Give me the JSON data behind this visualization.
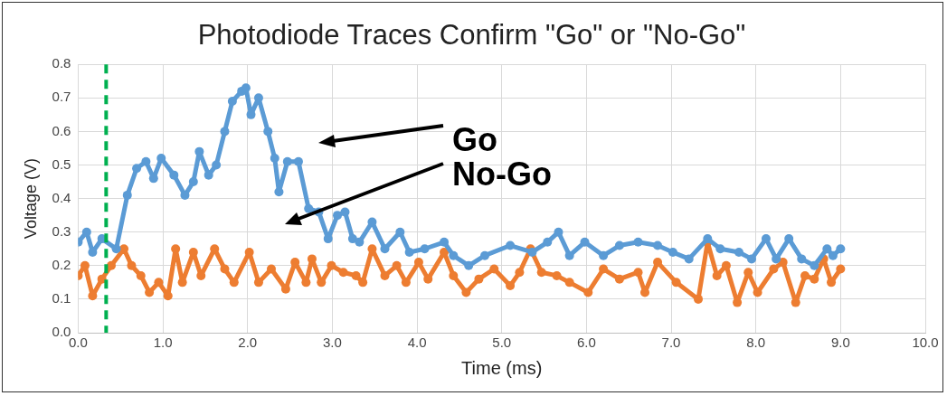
{
  "chart_data": {
    "type": "line",
    "title": "Photodiode Traces Confirm \"Go\" or \"No-Go\"",
    "xlabel": "Time (ms)",
    "ylabel": "Voltage (V)",
    "xlim": [
      0,
      10
    ],
    "ylim": [
      0,
      0.8
    ],
    "xticks": [
      {
        "value": 0,
        "label": "0.0"
      },
      {
        "value": 1,
        "label": "1.0"
      },
      {
        "value": 2,
        "label": "2.0"
      },
      {
        "value": 3,
        "label": "3.0"
      },
      {
        "value": 4,
        "label": "4.0"
      },
      {
        "value": 5,
        "label": "5.0"
      },
      {
        "value": 6,
        "label": "6.0"
      },
      {
        "value": 7,
        "label": "7.0"
      },
      {
        "value": 8,
        "label": "8.0"
      },
      {
        "value": 9,
        "label": "9.0"
      },
      {
        "value": 10,
        "label": "10.0"
      }
    ],
    "yticks": [
      {
        "value": 0,
        "label": "0.0"
      },
      {
        "value": 0.1,
        "label": "0.1"
      },
      {
        "value": 0.2,
        "label": "0.2"
      },
      {
        "value": 0.3,
        "label": "0.3"
      },
      {
        "value": 0.4,
        "label": "0.4"
      },
      {
        "value": 0.5,
        "label": "0.5"
      },
      {
        "value": 0.6,
        "label": "0.6"
      },
      {
        "value": 0.7,
        "label": "0.7"
      },
      {
        "value": 0.8,
        "label": "0.8"
      }
    ],
    "grid": true,
    "marker": "circle",
    "series": [
      {
        "color": "#5b9bd5",
        "x": [
          0.0,
          0.1,
          0.17,
          0.28,
          0.45,
          0.58,
          0.69,
          0.8,
          0.89,
          0.98,
          1.13,
          1.26,
          1.36,
          1.43,
          1.54,
          1.63,
          1.73,
          1.82,
          1.93,
          1.98,
          2.04,
          2.13,
          2.24,
          2.32,
          2.37,
          2.47,
          2.6,
          2.72,
          2.84,
          2.95,
          3.06,
          3.15,
          3.24,
          3.32,
          3.47,
          3.62,
          3.8,
          3.91,
          4.09,
          4.32,
          4.43,
          4.61,
          4.8,
          5.1,
          5.36,
          5.54,
          5.67,
          5.8,
          5.98,
          6.2,
          6.39,
          6.61,
          6.84,
          7.02,
          7.21,
          7.43,
          7.58,
          7.8,
          7.95,
          8.12,
          8.24,
          8.39,
          8.54,
          8.69,
          8.84,
          8.91,
          9.0
        ],
        "values": [
          0.27,
          0.3,
          0.24,
          0.28,
          0.25,
          0.41,
          0.49,
          0.51,
          0.46,
          0.52,
          0.47,
          0.41,
          0.45,
          0.54,
          0.47,
          0.5,
          0.6,
          0.69,
          0.72,
          0.73,
          0.65,
          0.7,
          0.6,
          0.52,
          0.42,
          0.51,
          0.51,
          0.37,
          0.36,
          0.28,
          0.35,
          0.36,
          0.28,
          0.27,
          0.33,
          0.25,
          0.3,
          0.24,
          0.25,
          0.27,
          0.23,
          0.2,
          0.23,
          0.26,
          0.24,
          0.27,
          0.3,
          0.23,
          0.27,
          0.23,
          0.26,
          0.27,
          0.26,
          0.24,
          0.22,
          0.28,
          0.25,
          0.24,
          0.22,
          0.28,
          0.22,
          0.28,
          0.22,
          0.2,
          0.25,
          0.23,
          0.25
        ]
      },
      {
        "color": "#ed7d31",
        "x": [
          0.0,
          0.08,
          0.17,
          0.28,
          0.39,
          0.54,
          0.63,
          0.74,
          0.84,
          0.95,
          1.06,
          1.15,
          1.23,
          1.36,
          1.45,
          1.61,
          1.73,
          1.84,
          2.02,
          2.13,
          2.28,
          2.45,
          2.56,
          2.69,
          2.76,
          2.87,
          2.99,
          3.13,
          3.28,
          3.36,
          3.47,
          3.62,
          3.76,
          3.87,
          4.02,
          4.13,
          4.32,
          4.43,
          4.58,
          4.73,
          4.91,
          5.1,
          5.21,
          5.34,
          5.47,
          5.65,
          5.8,
          6.02,
          6.2,
          6.39,
          6.61,
          6.69,
          6.84,
          7.06,
          7.32,
          7.43,
          7.54,
          7.65,
          7.78,
          7.91,
          8.02,
          8.21,
          8.32,
          8.47,
          8.58,
          8.69,
          8.8,
          8.89,
          9.0
        ],
        "values": [
          0.17,
          0.2,
          0.11,
          0.16,
          0.2,
          0.25,
          0.2,
          0.17,
          0.12,
          0.15,
          0.11,
          0.25,
          0.15,
          0.24,
          0.17,
          0.25,
          0.19,
          0.15,
          0.24,
          0.15,
          0.19,
          0.13,
          0.21,
          0.15,
          0.22,
          0.15,
          0.2,
          0.18,
          0.17,
          0.15,
          0.25,
          0.17,
          0.2,
          0.15,
          0.21,
          0.16,
          0.24,
          0.17,
          0.12,
          0.16,
          0.19,
          0.14,
          0.18,
          0.25,
          0.18,
          0.17,
          0.15,
          0.12,
          0.19,
          0.16,
          0.18,
          0.12,
          0.21,
          0.15,
          0.1,
          0.27,
          0.17,
          0.2,
          0.09,
          0.18,
          0.12,
          0.19,
          0.21,
          0.09,
          0.17,
          0.16,
          0.22,
          0.15,
          0.19
        ]
      }
    ],
    "ref_lines": [
      {
        "axis": "x",
        "value": 0.33,
        "color": "#00b050",
        "line_style": "dashed"
      }
    ],
    "annotations": [
      "Go",
      "No-Go"
    ]
  }
}
